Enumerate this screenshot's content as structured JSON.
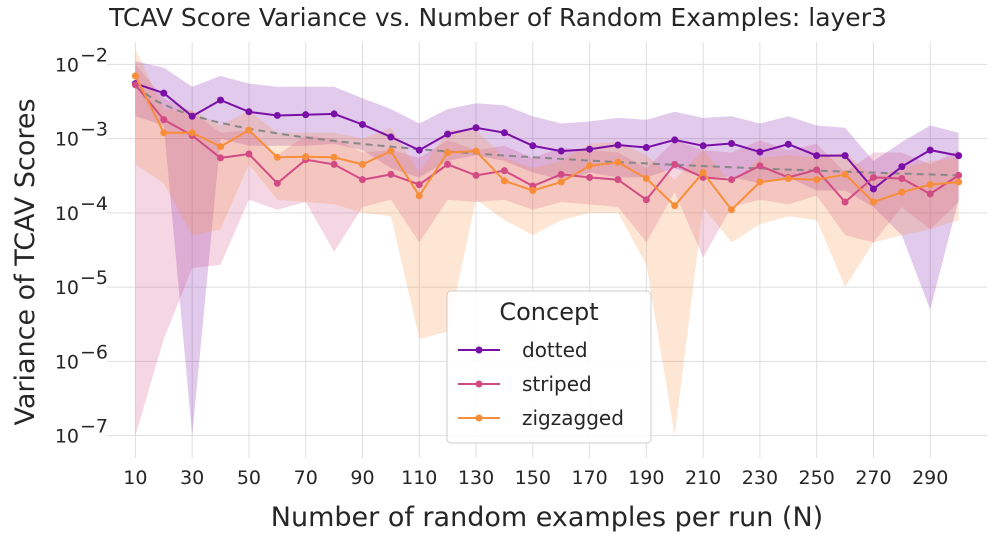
{
  "chart_data": {
    "type": "line",
    "title": "TCAV Score Variance vs. Number of Random Examples: layer3",
    "xlabel": "Number of random examples per run (N)",
    "ylabel": "Variance of TCAV Scores",
    "yscale": "log",
    "ylim": [
      5e-08,
      0.02
    ],
    "xlim": [
      0,
      310
    ],
    "x_ticks": [
      10,
      30,
      50,
      70,
      90,
      110,
      130,
      150,
      170,
      190,
      210,
      230,
      250,
      270,
      290
    ],
    "y_ticks": [
      {
        "value": 1e-07,
        "label": "10",
        "exp": "−7"
      },
      {
        "value": 1e-06,
        "label": "10",
        "exp": "−6"
      },
      {
        "value": 1e-05,
        "label": "10",
        "exp": "−5"
      },
      {
        "value": 0.0001,
        "label": "10",
        "exp": "−4"
      },
      {
        "value": 0.001,
        "label": "10",
        "exp": "−3"
      },
      {
        "value": 0.01,
        "label": "10",
        "exp": "−2"
      }
    ],
    "grid": true,
    "legend": {
      "title": "Concept",
      "placement": "bottom-center"
    },
    "x": [
      10,
      20,
      30,
      40,
      50,
      60,
      70,
      80,
      90,
      100,
      110,
      120,
      130,
      140,
      150,
      160,
      170,
      180,
      190,
      200,
      210,
      220,
      230,
      240,
      250,
      260,
      270,
      280,
      290,
      300
    ],
    "series": [
      {
        "name": "dotted",
        "color": "#7a0fa8",
        "values": [
          0.0055,
          0.0041,
          0.002,
          0.0033,
          0.0023,
          0.00205,
          0.0021,
          0.00215,
          0.00155,
          0.00105,
          0.0007,
          0.00115,
          0.0014,
          0.0012,
          0.0008,
          0.00068,
          0.00072,
          0.00082,
          0.00076,
          0.00096,
          0.0008,
          0.00086,
          0.00066,
          0.00084,
          0.00059,
          0.00059,
          0.00021,
          0.00042,
          0.0007,
          0.00059
        ],
        "band_lower": [
          0.002,
          0.0015,
          1e-07,
          0.001,
          0.0008,
          0.0008,
          0.0008,
          0.00085,
          0.0007,
          0.0004,
          0.0003,
          0.0005,
          0.0006,
          0.0005,
          0.00035,
          0.00028,
          0.00035,
          0.0003,
          0.0003,
          0.0004,
          0.0003,
          0.0003,
          0.00025,
          0.0003,
          0.0002,
          0.0002,
          0.00012,
          5e-05,
          5e-06,
          0.00015
        ],
        "band_upper": [
          0.011,
          0.009,
          0.005,
          0.007,
          0.0055,
          0.005,
          0.005,
          0.005,
          0.0035,
          0.0025,
          0.0016,
          0.0025,
          0.003,
          0.0028,
          0.002,
          0.0016,
          0.0017,
          0.0019,
          0.0018,
          0.0023,
          0.0019,
          0.002,
          0.0016,
          0.002,
          0.0015,
          0.0014,
          0.0005,
          0.0009,
          0.0015,
          0.0012
        ]
      },
      {
        "name": "striped",
        "color": "#d24b84",
        "values": [
          0.0053,
          0.0018,
          0.0011,
          0.00055,
          0.00062,
          0.00025,
          0.00052,
          0.00045,
          0.00028,
          0.00033,
          0.00024,
          0.00045,
          0.00032,
          0.00037,
          0.00023,
          0.00033,
          0.0003,
          0.00028,
          0.00015,
          0.00045,
          0.0003,
          0.00028,
          0.00043,
          0.0003,
          0.00038,
          0.00014,
          0.0003,
          0.00029,
          0.00018,
          0.00032
        ],
        "band_lower": [
          1e-07,
          2e-06,
          1.8e-05,
          2e-05,
          0.00015,
          0.00011,
          0.00014,
          3e-05,
          0.00012,
          0.00015,
          4e-05,
          0.00015,
          0.00014,
          0.00015,
          0.00011,
          0.00014,
          0.00013,
          0.00012,
          4e-05,
          0.00019,
          2.5e-05,
          0.00012,
          0.00015,
          0.00013,
          0.00017,
          5e-05,
          4e-05,
          0.00012,
          6e-05,
          0.00014
        ],
        "band_upper": [
          0.01,
          0.0035,
          0.0023,
          0.0012,
          0.0013,
          0.0006,
          0.0011,
          0.001,
          0.00065,
          0.0007,
          0.00055,
          0.00095,
          0.0007,
          0.0008,
          0.00055,
          0.00075,
          0.0007,
          0.00065,
          0.0004,
          0.00095,
          0.0007,
          0.00065,
          0.00095,
          0.0007,
          0.00085,
          0.00035,
          0.00065,
          0.00065,
          0.00045,
          0.0007
        ]
      },
      {
        "name": "zigzagged",
        "color": "#f88e3a",
        "values": [
          0.007,
          0.0012,
          0.0012,
          0.00078,
          0.0013,
          0.00056,
          0.00057,
          0.00056,
          0.00045,
          0.00068,
          0.00017,
          0.00065,
          0.00068,
          0.00027,
          0.0002,
          0.00026,
          0.00043,
          0.00048,
          0.00029,
          0.000125,
          0.00035,
          0.00011,
          0.00026,
          0.00029,
          0.00028,
          0.00033,
          0.00014,
          0.00019,
          0.00024,
          0.00026
        ],
        "band_lower": [
          0.00045,
          0.00025,
          5e-05,
          6e-05,
          0.00045,
          0.00015,
          0.00014,
          0.00013,
          0.0001,
          9e-05,
          2e-06,
          2.5e-06,
          0.00015,
          8e-05,
          5e-05,
          8e-05,
          0.0001,
          0.0001,
          2e-05,
          1e-07,
          0.00012,
          4e-05,
          7e-05,
          9e-05,
          8e-05,
          1e-05,
          4e-05,
          5e-05,
          6e-05,
          8e-05
        ],
        "band_upper": [
          0.016,
          0.0025,
          0.0024,
          0.0015,
          0.0024,
          0.0012,
          0.0012,
          0.0012,
          0.001,
          0.0014,
          0.00035,
          0.0013,
          0.0013,
          0.00055,
          0.0004,
          0.0005,
          0.00085,
          0.0009,
          0.0006,
          0.00028,
          0.0007,
          0.00025,
          0.00055,
          0.0006,
          0.00055,
          0.00065,
          0.0003,
          0.0004,
          0.0005,
          0.00055
        ]
      }
    ],
    "trendline": {
      "color": "#888888",
      "style": "dashed",
      "from": [
        10,
        0.005
      ],
      "to": [
        300,
        0.00032
      ]
    }
  }
}
